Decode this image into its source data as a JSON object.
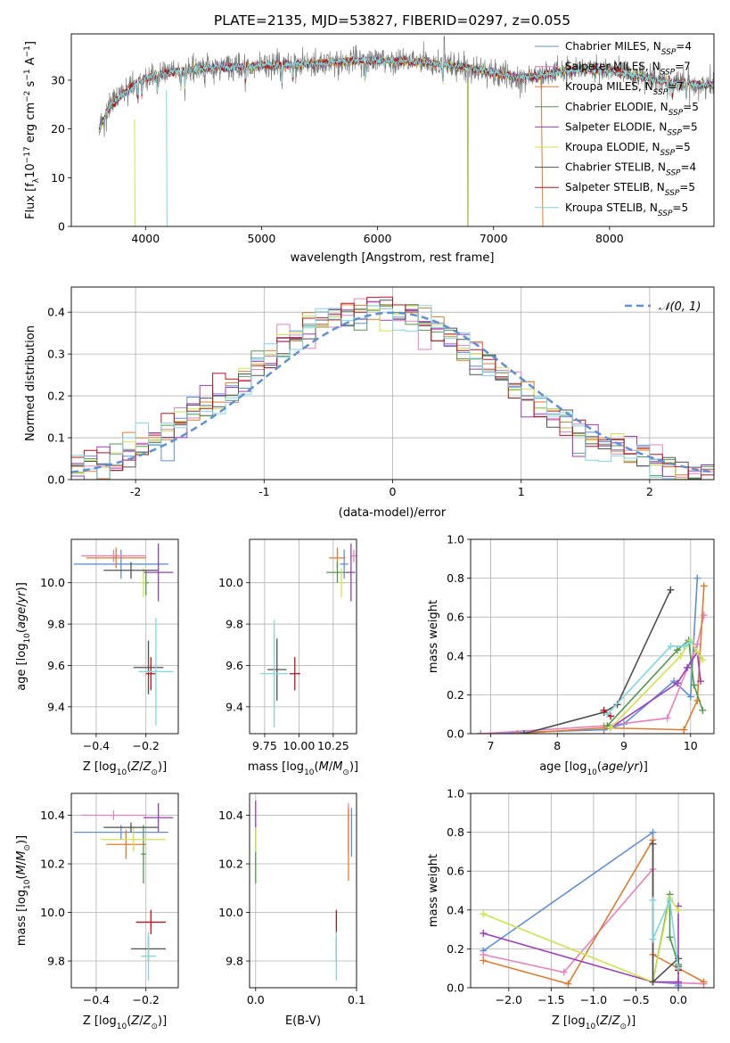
{
  "figure_title": "PLATE=2135, MJD=53827, FIBERID=0297, z=0.055",
  "colors": {
    "Chabrier MILES": "#5f8fd6",
    "Salpeter MILES": "#e87fbf",
    "Kroupa MILES": "#e07b2e",
    "Chabrier ELODIE": "#4f9a4a",
    "Salpeter ELODIE": "#9a3dbd",
    "Kroupa ELODIE": "#cfe34a",
    "Chabrier STELIB": "#505050",
    "Salpeter STELIB": "#b8141c",
    "Kroupa STELIB": "#7fd6de",
    "data": "#7a7a7a",
    "gaussian": "#5f8fd6",
    "grid": "#b0b0b0"
  },
  "chart_data": [
    {
      "id": "spectrum",
      "type": "line",
      "title": "PLATE=2135, MJD=53827, FIBERID=0297, z=0.055",
      "xlabel": "wavelength [Angstrom, rest frame]",
      "ylabel": "Flux [f_λ 10^-17 erg cm^-2 s^-1 A^-1]",
      "ylabel_parts": [
        "Flux [f",
        "λ",
        "10",
        "−17",
        " erg cm",
        "−2",
        " s",
        "−1",
        " A",
        "−1",
        "]"
      ],
      "xlim": [
        3360,
        8900
      ],
      "ylim": [
        0,
        39.5
      ],
      "xticks": [
        4000,
        5000,
        6000,
        7000,
        8000
      ],
      "yticks": [
        0,
        10,
        20,
        30
      ],
      "grid": false,
      "legend_position": "top-right",
      "legend": [
        {
          "name": "Chabrier MILES",
          "suffix": "=4"
        },
        {
          "name": "Salpeter MILES",
          "suffix": "=7"
        },
        {
          "name": "Kroupa MILES",
          "suffix": "=7"
        },
        {
          "name": "Chabrier ELODIE",
          "suffix": "=5"
        },
        {
          "name": "Salpeter ELODIE",
          "suffix": "=5"
        },
        {
          "name": "Kroupa ELODIE",
          "suffix": "=5"
        },
        {
          "name": "Chabrier STELIB",
          "suffix": "=4"
        },
        {
          "name": "Salpeter STELIB",
          "suffix": "=5"
        },
        {
          "name": "Kroupa STELIB",
          "suffix": "=5"
        }
      ],
      "legend_prefix": "N",
      "legend_subscript": "SSP",
      "continuum_x": [
        3600,
        3700,
        3850,
        3950,
        4100,
        4300,
        4600,
        5000,
        5500,
        5800,
        6000,
        6300,
        6600,
        6800,
        7000,
        7200,
        7400,
        7600,
        7800,
        8000,
        8200,
        8400,
        8600,
        8800
      ],
      "continuum_y": [
        20,
        25,
        28,
        30,
        31,
        32,
        32.5,
        33,
        33.5,
        34,
        34,
        33.8,
        33.2,
        32.5,
        31.5,
        30.5,
        30.8,
        32,
        32.3,
        32,
        31,
        30,
        29.5,
        29
      ]
    },
    {
      "id": "residuals",
      "type": "histogram",
      "xlabel": "(data-model)/error",
      "ylabel": "Normed distribution",
      "xlim": [
        -2.5,
        2.5
      ],
      "ylim": [
        0,
        0.46
      ],
      "xticks": [
        -2,
        -1,
        0,
        1,
        2
      ],
      "yticks": [
        0.0,
        0.1,
        0.2,
        0.3,
        0.4
      ],
      "grid": true,
      "legend": "𝒩(0, 1)",
      "legend_position": "top-right",
      "bin_width": 0.1,
      "reference_curve": "normal(0,1)"
    },
    {
      "id": "age_vs_Z",
      "type": "errorbar",
      "xlabel": "Z [log10(Z/Z☉)]",
      "ylabel": "age [log10(age/yr)]",
      "xlim": [
        -0.5,
        -0.07
      ],
      "ylim": [
        9.27,
        10.21
      ],
      "xticks": [
        -0.4,
        -0.2
      ],
      "xticklabels": [
        "−0.4",
        "−0.2"
      ],
      "yticks": [
        9.4,
        9.6,
        9.8,
        10.0
      ],
      "grid": true,
      "points": [
        {
          "series": "Chabrier MILES",
          "x": -0.3,
          "y": 10.09,
          "xerr": 0.19,
          "yerr": 0.07
        },
        {
          "series": "Salpeter MILES",
          "x": -0.33,
          "y": 10.13,
          "xerr": 0.13,
          "yerr": 0.03
        },
        {
          "series": "Kroupa MILES",
          "x": -0.32,
          "y": 10.12,
          "xerr": 0.12,
          "yerr": 0.05
        },
        {
          "series": "Chabrier ELODIE",
          "x": -0.2,
          "y": 10.0,
          "xerr": 0.01,
          "yerr": 0.06
        },
        {
          "series": "Salpeter ELODIE",
          "x": -0.15,
          "y": 10.05,
          "xerr": 0.06,
          "yerr": 0.14
        },
        {
          "series": "Kroupa ELODIE",
          "x": -0.21,
          "y": 10.0,
          "xerr": 0.01,
          "yerr": 0.07
        },
        {
          "series": "Chabrier STELIB",
          "x": -0.19,
          "y": 9.59,
          "xerr": 0.06,
          "yerr": 0.13
        },
        {
          "series": "Salpeter STELIB",
          "x": -0.18,
          "y": 9.56,
          "xerr": 0.02,
          "yerr": 0.08
        },
        {
          "series": "Kroupa STELIB",
          "x": -0.16,
          "y": 9.57,
          "xerr": 0.07,
          "yerr": 0.26
        },
        {
          "series": "Chabrier STELIB",
          "x": -0.26,
          "y": 10.06,
          "xerr": 0.11,
          "yerr": 0.04
        }
      ]
    },
    {
      "id": "age_vs_mass",
      "type": "errorbar",
      "xlabel": "mass [log10(M/M☉)]",
      "xlim": [
        9.64,
        10.42
      ],
      "ylim": [
        9.27,
        10.21
      ],
      "xticks": [
        9.75,
        10.0,
        10.25
      ],
      "xticklabels": [
        "9.75",
        "10.00",
        "10.25"
      ],
      "yticks": [
        9.4,
        9.6,
        9.8,
        10.0
      ],
      "grid": true,
      "points": [
        {
          "series": "Chabrier MILES",
          "x": 10.33,
          "y": 10.09,
          "xerr": 0.03,
          "yerr": 0.07
        },
        {
          "series": "Salpeter MILES",
          "x": 10.4,
          "y": 10.13,
          "xerr": 0.02,
          "yerr": 0.03
        },
        {
          "series": "Kroupa MILES",
          "x": 10.28,
          "y": 10.12,
          "xerr": 0.06,
          "yerr": 0.05
        },
        {
          "series": "Chabrier ELODIE",
          "x": 10.28,
          "y": 10.05,
          "xerr": 0.08,
          "yerr": 0.05
        },
        {
          "series": "Salpeter ELODIE",
          "x": 10.38,
          "y": 10.05,
          "xerr": 0.03,
          "yerr": 0.14
        },
        {
          "series": "Kroupa ELODIE",
          "x": 10.31,
          "y": 10.0,
          "xerr": 0.02,
          "yerr": 0.07
        },
        {
          "series": "Chabrier STELIB",
          "x": 9.84,
          "y": 9.58,
          "xerr": 0.07,
          "yerr": 0.15
        },
        {
          "series": "Salpeter STELIB",
          "x": 9.97,
          "y": 9.56,
          "xerr": 0.04,
          "yerr": 0.08
        },
        {
          "series": "Kroupa STELIB",
          "x": 9.82,
          "y": 9.56,
          "xerr": 0.1,
          "yerr": 0.26
        }
      ]
    },
    {
      "id": "weight_vs_age",
      "type": "line",
      "xlabel": "age  [log10(age/yr)]",
      "ylabel": "mass weight",
      "xlim": [
        6.7,
        10.35
      ],
      "ylim": [
        0,
        1.0
      ],
      "xticks": [
        7,
        8,
        9,
        10
      ],
      "yticks": [
        0.0,
        0.2,
        0.4,
        0.6,
        0.8,
        1.0
      ],
      "grid": true,
      "series": [
        {
          "name": "Chabrier MILES",
          "x": [
            6.85,
            8.7,
            9.0,
            9.75,
            10.0,
            10.1
          ],
          "y": [
            0.0,
            0.02,
            0.05,
            0.27,
            0.19,
            0.8
          ]
        },
        {
          "name": "Salpeter MILES",
          "x": [
            6.85,
            8.7,
            9.65,
            10.1,
            10.2
          ],
          "y": [
            0.0,
            0.04,
            0.08,
            0.46,
            0.61
          ]
        },
        {
          "name": "Kroupa MILES",
          "x": [
            7.4,
            8.7,
            9.9,
            10.1,
            10.2
          ],
          "y": [
            0.0,
            0.03,
            0.02,
            0.17,
            0.76
          ]
        },
        {
          "name": "Chabrier ELODIE",
          "x": [
            8.75,
            9.8,
            9.97,
            10.05,
            10.18
          ],
          "y": [
            0.04,
            0.43,
            0.48,
            0.25,
            0.12
          ]
        },
        {
          "name": "Salpeter ELODIE",
          "x": [
            8.8,
            9.8,
            9.95,
            10.1,
            10.15
          ],
          "y": [
            0.03,
            0.26,
            0.34,
            0.42,
            0.27
          ]
        },
        {
          "name": "Kroupa ELODIE",
          "x": [
            8.8,
            9.85,
            10.0,
            10.1,
            10.18
          ],
          "y": [
            0.03,
            0.4,
            0.48,
            0.42,
            0.38
          ]
        },
        {
          "name": "Chabrier STELIB",
          "x": [
            7.5,
            8.7,
            8.9,
            9.7
          ],
          "y": [
            0.0,
            0.11,
            0.15,
            0.74
          ]
        },
        {
          "name": "Salpeter STELIB",
          "x": [
            8.7,
            8.8
          ],
          "y": [
            0.12,
            0.09
          ]
        },
        {
          "name": "Kroupa STELIB",
          "x": [
            8.75,
            9.7,
            9.9,
            10.0
          ],
          "y": [
            0.1,
            0.45,
            0.45,
            0.47
          ]
        }
      ]
    },
    {
      "id": "mass_vs_Z",
      "type": "errorbar",
      "xlabel": "Z [log10(Z/Z☉)]",
      "ylabel": "mass [log10(M/M☉)]",
      "xlim": [
        -0.5,
        -0.07
      ],
      "ylim": [
        9.69,
        10.49
      ],
      "xticks": [
        -0.4,
        -0.2
      ],
      "xticklabels": [
        "−0.4",
        "−0.2"
      ],
      "yticks": [
        9.8,
        10.0,
        10.2,
        10.4
      ],
      "grid": true,
      "points": [
        {
          "series": "Chabrier MILES",
          "x": -0.3,
          "y": 10.33,
          "xerr": 0.19,
          "yerr": 0.03
        },
        {
          "series": "Salpeter MILES",
          "x": -0.33,
          "y": 10.4,
          "xerr": 0.13,
          "yerr": 0.02
        },
        {
          "series": "Kroupa MILES",
          "x": -0.28,
          "y": 10.28,
          "xerr": 0.08,
          "yerr": 0.06
        },
        {
          "series": "Chabrier ELODIE",
          "x": -0.21,
          "y": 10.24,
          "xerr": 0.01,
          "yerr": 0.12
        },
        {
          "series": "Salpeter ELODIE",
          "x": -0.15,
          "y": 10.39,
          "xerr": 0.06,
          "yerr": 0.06
        },
        {
          "series": "Kroupa ELODIE",
          "x": -0.25,
          "y": 10.3,
          "xerr": 0.13,
          "yerr": 0.05
        },
        {
          "series": "Chabrier STELIB",
          "x": -0.19,
          "y": 9.85,
          "xerr": 0.07,
          "yerr": 0.05
        },
        {
          "series": "Salpeter STELIB",
          "x": -0.18,
          "y": 9.96,
          "xerr": 0.06,
          "yerr": 0.05
        },
        {
          "series": "Kroupa STELIB",
          "x": -0.19,
          "y": 9.82,
          "xerr": 0.03,
          "yerr": 0.1
        },
        {
          "series": "Chabrier STELIB",
          "x": -0.26,
          "y": 10.35,
          "xerr": 0.11,
          "yerr": 0.02
        }
      ]
    },
    {
      "id": "mass_vs_ebv",
      "type": "errorbar",
      "xlabel": "E(B-V)",
      "xlim": [
        -0.006,
        0.1
      ],
      "ylim": [
        9.69,
        10.49
      ],
      "xticks": [
        0.0,
        0.1
      ],
      "xticklabels": [
        "0.0",
        "0.1"
      ],
      "yticks": [
        9.8,
        10.0,
        10.2,
        10.4
      ],
      "grid": true,
      "points": [
        {
          "series": "Chabrier MILES",
          "x": 0.095,
          "y": 10.33,
          "xerr": 0.0005,
          "yerr": 0.1
        },
        {
          "series": "Salpeter MILES",
          "x": 0.092,
          "y": 10.35,
          "xerr": 0.0005,
          "yerr": 0.1
        },
        {
          "series": "Kroupa MILES",
          "x": 0.092,
          "y": 10.28,
          "xerr": 0.0005,
          "yerr": 0.15
        },
        {
          "series": "Chabrier ELODIE",
          "x": 0.0,
          "y": 10.24,
          "xerr": 0.0005,
          "yerr": 0.12
        },
        {
          "series": "Salpeter ELODIE",
          "x": 0.0,
          "y": 10.39,
          "xerr": 0.0005,
          "yerr": 0.07
        },
        {
          "series": "Kroupa ELODIE",
          "x": 0.0,
          "y": 10.3,
          "xerr": 0.0005,
          "yerr": 0.05
        },
        {
          "series": "Chabrier STELIB",
          "x": 0.08,
          "y": 9.85,
          "xerr": 0.0005,
          "yerr": 0.05
        },
        {
          "series": "Salpeter STELIB",
          "x": 0.08,
          "y": 9.96,
          "xerr": 0.0005,
          "yerr": 0.05
        },
        {
          "series": "Kroupa STELIB",
          "x": 0.08,
          "y": 9.82,
          "xerr": 0.0005,
          "yerr": 0.1
        }
      ]
    },
    {
      "id": "weight_vs_Z",
      "type": "line",
      "xlabel": "Z [log10(Z/Z☉)]",
      "ylabel": "mass weight",
      "xlim": [
        -2.45,
        0.42
      ],
      "ylim": [
        0,
        1.0
      ],
      "xticks": [
        -2.0,
        -1.5,
        -1.0,
        -0.5,
        0.0
      ],
      "xticklabels": [
        "−2.0",
        "−1.5",
        "−1.0",
        "−0.5",
        "0.0"
      ],
      "yticks": [
        0.0,
        0.2,
        0.4,
        0.6,
        0.8,
        1.0
      ],
      "grid": true,
      "series": [
        {
          "name": "Chabrier MILES",
          "x": [
            -2.3,
            -0.3,
            -0.3,
            0.0,
            0.0
          ],
          "y": [
            0.19,
            0.8,
            0.03,
            0.02,
            0.01
          ]
        },
        {
          "name": "Salpeter MILES",
          "x": [
            -2.3,
            -1.35,
            -0.3,
            -0.3,
            0.3
          ],
          "y": [
            0.17,
            0.08,
            0.61,
            0.03,
            0.02
          ]
        },
        {
          "name": "Kroupa MILES",
          "x": [
            -2.3,
            -1.3,
            -0.3,
            -0.3,
            0.3
          ],
          "y": [
            0.14,
            0.02,
            0.76,
            0.17,
            0.03
          ]
        },
        {
          "name": "Chabrier ELODIE",
          "x": [
            -0.3,
            -0.1,
            -0.1,
            0.0
          ],
          "y": [
            0.03,
            0.48,
            0.26,
            0.12
          ]
        },
        {
          "name": "Salpeter ELODIE",
          "x": [
            -2.3,
            -0.3,
            0.0,
            0.0
          ],
          "y": [
            0.28,
            0.03,
            0.03,
            0.42
          ]
        },
        {
          "name": "Kroupa ELODIE",
          "x": [
            -2.3,
            -0.3,
            -0.1,
            0.0
          ],
          "y": [
            0.38,
            0.03,
            0.46,
            0.4
          ]
        },
        {
          "name": "Chabrier STELIB",
          "x": [
            -0.3,
            -0.3,
            0.0,
            0.0
          ],
          "y": [
            0.74,
            0.03,
            0.15,
            0.11
          ]
        },
        {
          "name": "Salpeter STELIB",
          "x": [
            0.0
          ],
          "y": [
            0.09
          ]
        },
        {
          "name": "Kroupa STELIB",
          "x": [
            -0.3,
            -0.3,
            -0.1,
            0.0
          ],
          "y": [
            0.45,
            0.25,
            0.45,
            0.1
          ]
        }
      ]
    }
  ]
}
